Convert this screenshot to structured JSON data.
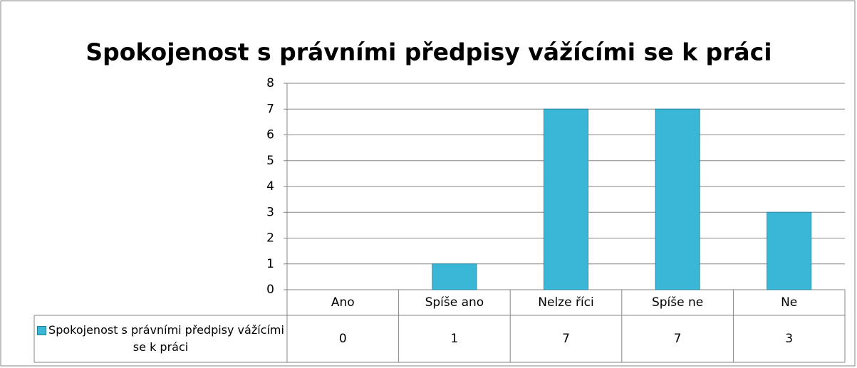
{
  "chart_data": {
    "type": "bar",
    "title": "Spokojenost s právními předpisy vážícími se k práci",
    "categories": [
      "Ano",
      "Spíše ano",
      "Nelze říci",
      "Spíše ne",
      "Ne"
    ],
    "series": [
      {
        "name": "Spokojenost s právními předpisy vážícími se k práci",
        "color": "#3ab6d6",
        "values": [
          0,
          1,
          7,
          7,
          3
        ]
      }
    ],
    "ylim": [
      0,
      8
    ],
    "yticks": [
      0,
      1,
      2,
      3,
      4,
      5,
      6,
      7,
      8
    ],
    "grid": true,
    "data_table": true
  }
}
